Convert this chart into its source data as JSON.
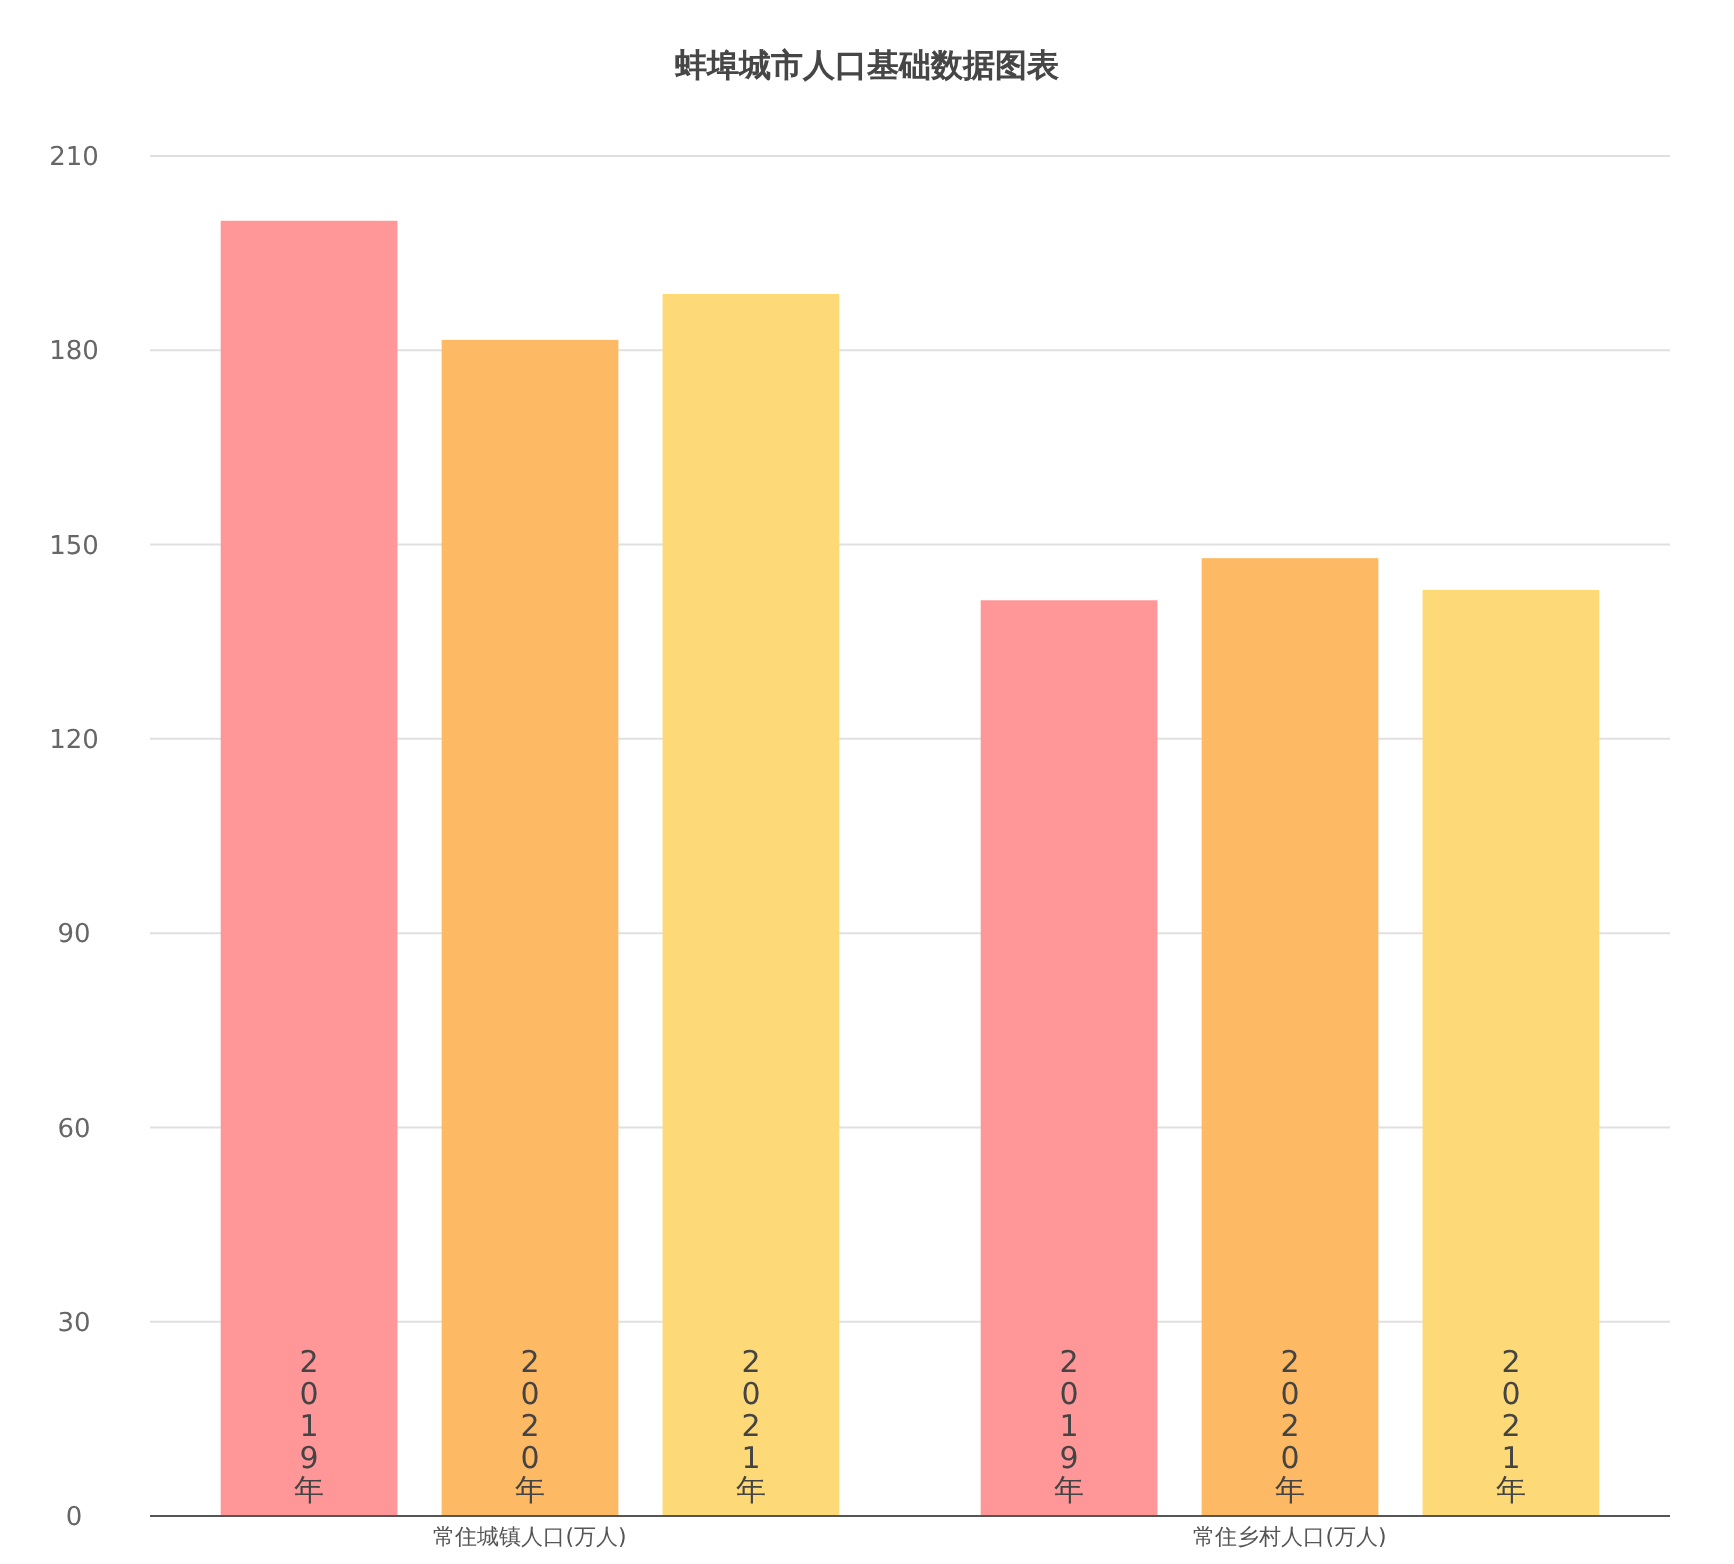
{
  "chart_data": {
    "type": "bar",
    "title": "蚌埠城市人口基础数据图表",
    "categories": [
      "常住城镇人口(万人)",
      "常住乡村人口(万人)"
    ],
    "series": [
      {
        "name": "2019年",
        "color": "#ff9799",
        "values": [
          200,
          141.4
        ]
      },
      {
        "name": "2020年",
        "color": "#fdb963",
        "values": [
          181.6,
          147.9
        ]
      },
      {
        "name": "2021年",
        "color": "#fdda77",
        "values": [
          188.7,
          143
        ]
      }
    ],
    "ylim": [
      0,
      210
    ],
    "yticks": [
      0,
      30,
      60,
      90,
      120,
      150,
      180,
      210
    ],
    "grid": "y"
  }
}
